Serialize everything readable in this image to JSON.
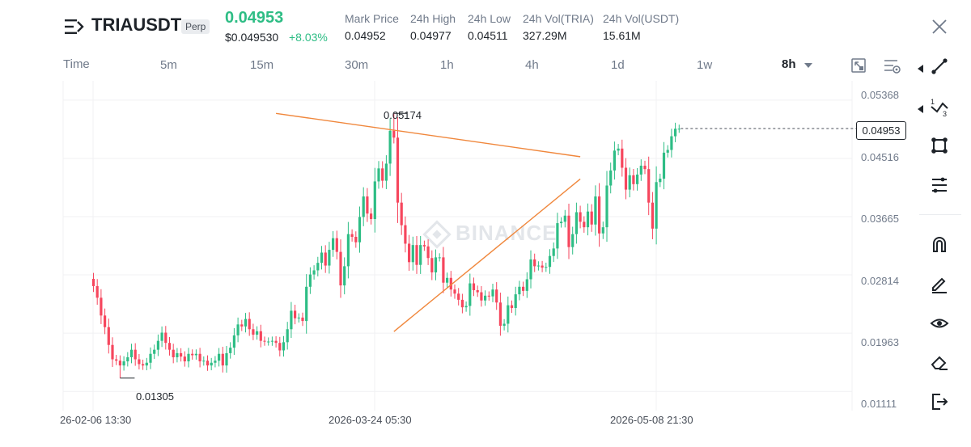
{
  "header": {
    "symbol": "TRIAUSDT",
    "contract_type": "Perp",
    "last_price": "0.04953",
    "usd_price": "$0.049530",
    "change_pct": "+8.03%",
    "stats": [
      {
        "label": "Mark Price",
        "value": "0.04952"
      },
      {
        "label": "24h High",
        "value": "0.04977"
      },
      {
        "label": "24h Low",
        "value": "0.04511"
      },
      {
        "label": "24h Vol(TRIA)",
        "value": "327.29M"
      },
      {
        "label": "24h Vol(USDT)",
        "value": "15.61M"
      }
    ]
  },
  "timeframes": {
    "time_label": "Time",
    "items": [
      "5m",
      "15m",
      "30m",
      "1h",
      "4h",
      "1d",
      "1w"
    ],
    "selected": "8h"
  },
  "watermark": "BINANCE",
  "colors": {
    "up": "#2ebd85",
    "down": "#f6465d",
    "accent_green": "#2ebd85",
    "trendline": "#f0873c",
    "text": "#1e2329",
    "muted": "#707a8a"
  },
  "chart_data": {
    "type": "candlestick",
    "y_ticks": [
      "0.05368",
      "0.04516",
      "0.03665",
      "0.02814",
      "0.01963",
      "0.01111"
    ],
    "x_ticks": [
      "26-02-06 13:30",
      "2026-03-24 05:30",
      "2026-05-08 21:30"
    ],
    "high_marker": "0.05174",
    "low_marker": "0.01305",
    "last_price_tag": "0.04953",
    "ylim": [
      0.0083,
      0.0565
    ],
    "grid": true,
    "trendlines": [
      {
        "name": "upper-trendline",
        "from": [
          48,
          0.05174
        ],
        "to": [
          128,
          0.04541
        ]
      },
      {
        "name": "lower-trendline",
        "from": [
          79,
          0.01986
        ],
        "to": [
          128,
          0.04215
        ]
      }
    ],
    "closes": [
      0.0265,
      0.0248,
      0.0222,
      0.0205,
      0.0179,
      0.0158,
      0.0156,
      0.0149,
      0.0155,
      0.0161,
      0.0172,
      0.0158,
      0.0151,
      0.0149,
      0.0153,
      0.0166,
      0.0172,
      0.0185,
      0.0197,
      0.0182,
      0.0172,
      0.0161,
      0.0167,
      0.0162,
      0.0155,
      0.0166,
      0.0164,
      0.0166,
      0.0155,
      0.0156,
      0.0149,
      0.0153,
      0.0156,
      0.0166,
      0.0149,
      0.0167,
      0.0175,
      0.0193,
      0.0209,
      0.0206,
      0.0217,
      0.0202,
      0.0194,
      0.0199,
      0.0185,
      0.0184,
      0.0184,
      0.0185,
      0.0182,
      0.0171,
      0.0183,
      0.0202,
      0.0229,
      0.0218,
      0.0219,
      0.0214,
      0.0264,
      0.0282,
      0.0288,
      0.0299,
      0.0314,
      0.0295,
      0.0318,
      0.0335,
      0.0315,
      0.0266,
      0.0294,
      0.0341,
      0.0337,
      0.0329,
      0.0366,
      0.0396,
      0.0371,
      0.0363,
      0.0418,
      0.0437,
      0.0419,
      0.0444,
      0.0492,
      0.0482,
      0.0387,
      0.0354,
      0.0327,
      0.03,
      0.0325,
      0.0296,
      0.0325,
      0.0323,
      0.0306,
      0.0285,
      0.0307,
      0.0307,
      0.027,
      0.0277,
      0.026,
      0.0254,
      0.0245,
      0.0234,
      0.0236,
      0.0269,
      0.0259,
      0.0256,
      0.0244,
      0.0251,
      0.025,
      0.026,
      0.0241,
      0.0207,
      0.021,
      0.0237,
      0.0233,
      0.0253,
      0.0264,
      0.0258,
      0.0275,
      0.0304,
      0.0294,
      0.0295,
      0.0292,
      0.0293,
      0.0309,
      0.032,
      0.0357,
      0.0359,
      0.0368,
      0.0322,
      0.0341,
      0.0373,
      0.0359,
      0.0351,
      0.0374,
      0.0355,
      0.0396,
      0.0342,
      0.0351,
      0.0412,
      0.0434,
      0.0463,
      0.0466,
      0.0438,
      0.0406,
      0.0427,
      0.0414,
      0.0428,
      0.0441,
      0.0436,
      0.0387,
      0.0349,
      0.0417,
      0.0422,
      0.046,
      0.0464,
      0.0484,
      0.0495,
      0.0495
    ]
  },
  "toolbar": {
    "tools": [
      "chevron-line-tool",
      "trend-line-icon",
      "multi-point-line-icon",
      "shapes-icon",
      "fib-tools-icon",
      "magnet-icon",
      "pencil-icon",
      "eye-icon",
      "eraser-icon",
      "exit-icon"
    ]
  }
}
